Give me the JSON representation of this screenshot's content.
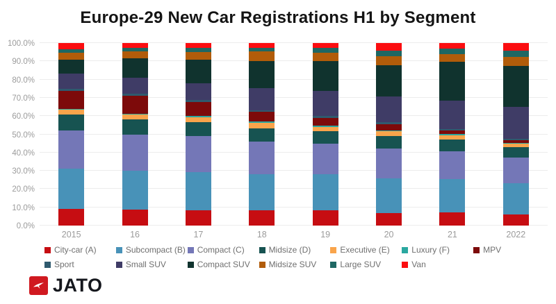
{
  "title": "Europe-29 New Car Registrations H1 by Segment",
  "chart_data": {
    "type": "bar",
    "stacked": true,
    "unit": "percent share",
    "title": "Europe-29 New Car Registrations H1 by Segment",
    "categories": [
      "2015",
      "16",
      "17",
      "18",
      "19",
      "20",
      "21",
      "2022"
    ],
    "series": [
      {
        "name": "City-car (A)",
        "color": "#c60d12",
        "values": [
          9.0,
          8.7,
          8.2,
          8.2,
          8.5,
          6.7,
          7.3,
          5.9
        ]
      },
      {
        "name": "Subcompact (B)",
        "color": "#4892b8",
        "values": [
          22.1,
          21.5,
          21.2,
          20.0,
          19.5,
          19.0,
          18.3,
          17.2
        ]
      },
      {
        "name": "Compact (C)",
        "color": "#7477b7",
        "values": [
          21.0,
          19.6,
          19.5,
          18.0,
          17.0,
          16.7,
          15.0,
          14.0
        ]
      },
      {
        "name": "Midsize (D)",
        "color": "#175351",
        "values": [
          8.9,
          8.2,
          7.6,
          7.0,
          6.7,
          6.7,
          6.6,
          5.7
        ]
      },
      {
        "name": "Executive (E)",
        "color": "#f9a44b",
        "values": [
          2.5,
          3.0,
          2.9,
          3.2,
          2.5,
          2.5,
          2.3,
          2.0
        ]
      },
      {
        "name": "Luxury (F)",
        "color": "#2aa8a0",
        "values": [
          0.4,
          0.4,
          0.5,
          0.6,
          0.7,
          0.7,
          0.8,
          0.5
        ]
      },
      {
        "name": "MPV",
        "color": "#7d0a0a",
        "values": [
          10.0,
          9.8,
          7.9,
          5.3,
          4.2,
          3.3,
          1.8,
          1.5
        ]
      },
      {
        "name": "Sport",
        "color": "#2f5a6e",
        "values": [
          1.0,
          1.0,
          1.0,
          1.0,
          1.0,
          0.9,
          0.8,
          0.8
        ]
      },
      {
        "name": "Small SUV",
        "color": "#3f3c66",
        "values": [
          8.3,
          8.9,
          9.1,
          11.9,
          13.6,
          14.3,
          15.7,
          17.5
        ]
      },
      {
        "name": "Compact SUV",
        "color": "#10332e",
        "values": [
          7.7,
          10.4,
          12.9,
          15.0,
          16.5,
          17.2,
          21.2,
          22.5
        ]
      },
      {
        "name": "Midsize SUV",
        "color": "#b15c0a",
        "values": [
          3.8,
          3.8,
          4.1,
          5.1,
          4.7,
          4.7,
          4.2,
          5.0
        ]
      },
      {
        "name": "Large SUV",
        "color": "#1e6763",
        "values": [
          2.0,
          1.9,
          2.3,
          2.2,
          2.3,
          3.2,
          3.0,
          3.4
        ]
      },
      {
        "name": "Van",
        "color": "#fb0d10",
        "values": [
          3.3,
          2.8,
          2.8,
          2.5,
          2.8,
          4.1,
          3.0,
          4.0
        ]
      }
    ],
    "ylim": [
      0,
      100
    ],
    "y_ticks": [
      "0.0%",
      "10.0%",
      "20.0%",
      "30.0%",
      "40.0%",
      "50.0%",
      "60.0%",
      "70.0%",
      "80.0%",
      "90.0%",
      "100.0%"
    ],
    "grid": true,
    "legend_position": "bottom"
  },
  "logo": {
    "text": "JATO",
    "icon": "jato-arrow-icon"
  }
}
